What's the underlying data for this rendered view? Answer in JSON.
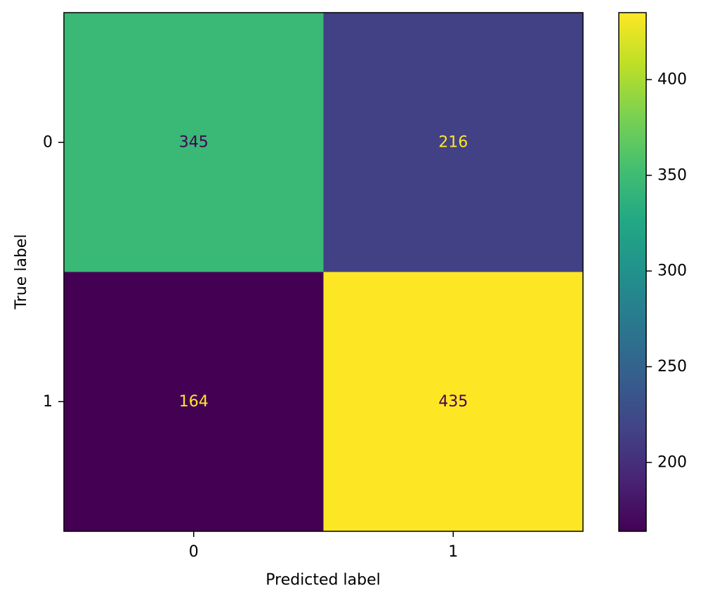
{
  "chart_data": {
    "type": "heatmap",
    "title": "",
    "xlabel": "Predicted label",
    "ylabel": "True label",
    "x_categories": [
      "0",
      "1"
    ],
    "y_categories": [
      "0",
      "1"
    ],
    "values": [
      [
        345,
        216
      ],
      [
        164,
        435
      ]
    ],
    "colormap": "viridis",
    "colorbar": {
      "range": [
        164,
        435
      ],
      "ticks": [
        200,
        250,
        300,
        350,
        400
      ]
    },
    "grid": false,
    "cell_text_colors": {
      "dark": "#ffffff",
      "light": "#440154"
    }
  }
}
